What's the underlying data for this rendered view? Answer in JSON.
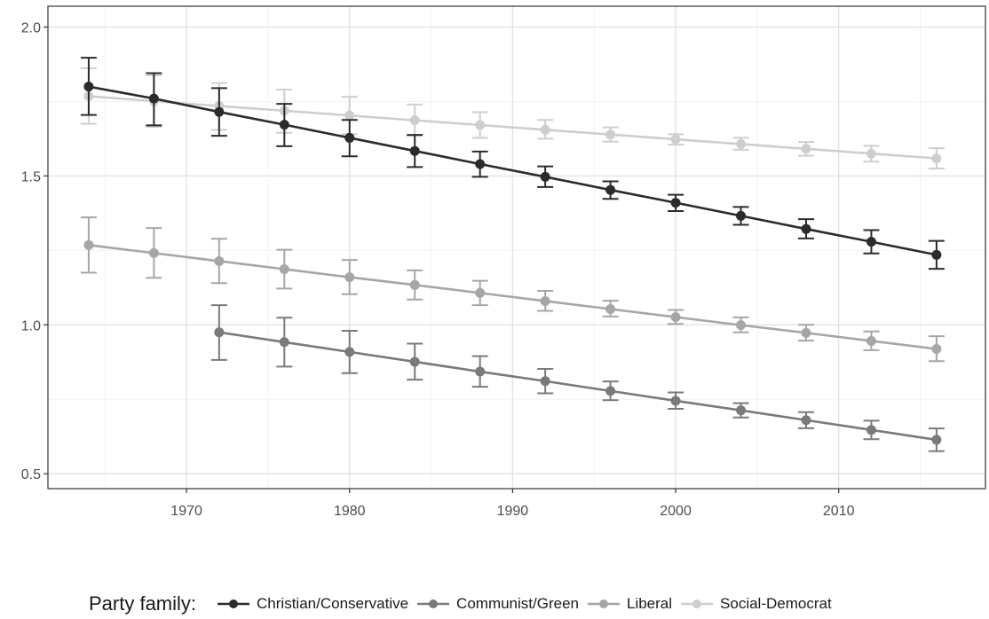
{
  "chart_data": {
    "type": "line",
    "title": "",
    "xlabel": "",
    "ylabel": "",
    "xlim": [
      1961.5,
      2019
    ],
    "ylim": [
      0.45,
      2.07
    ],
    "grid": true,
    "x_ticks": [
      1970,
      1980,
      1990,
      2000,
      2010
    ],
    "y_ticks": [
      0.5,
      1.0,
      1.5,
      2.0
    ],
    "y_tick_labels": [
      "0.5",
      "1.0",
      "1.5",
      "2.0"
    ],
    "legend_position": "bottom",
    "legend_title": "Party family:",
    "error_bars": true,
    "series": [
      {
        "name": "Christian/Conservative",
        "color": "#2b2b2b",
        "x": [
          1964,
          1968,
          1972,
          1976,
          1980,
          1984,
          1988,
          1992,
          1996,
          2000,
          2004,
          2008,
          2012,
          2016
        ],
        "y": [
          1.8,
          1.76,
          1.715,
          1.672,
          1.628,
          1.584,
          1.54,
          1.497,
          1.453,
          1.41,
          1.366,
          1.322,
          1.279,
          1.235
        ],
        "lower": [
          1.705,
          1.67,
          1.635,
          1.6,
          1.566,
          1.53,
          1.497,
          1.463,
          1.423,
          1.382,
          1.336,
          1.29,
          1.24,
          1.188
        ],
        "upper": [
          1.897,
          1.845,
          1.795,
          1.742,
          1.688,
          1.638,
          1.582,
          1.532,
          1.482,
          1.437,
          1.396,
          1.355,
          1.318,
          1.282
        ]
      },
      {
        "name": "Communist/Green",
        "color": "#7a7a7a",
        "x": [
          1972,
          1976,
          1980,
          1984,
          1988,
          1992,
          1996,
          2000,
          2004,
          2008,
          2012,
          2016
        ],
        "y": [
          0.975,
          0.942,
          0.909,
          0.876,
          0.843,
          0.811,
          0.778,
          0.745,
          0.713,
          0.68,
          0.647,
          0.614
        ],
        "lower": [
          0.882,
          0.86,
          0.838,
          0.816,
          0.792,
          0.77,
          0.747,
          0.718,
          0.689,
          0.653,
          0.616,
          0.576
        ],
        "upper": [
          1.066,
          1.024,
          0.98,
          0.937,
          0.895,
          0.852,
          0.81,
          0.773,
          0.737,
          0.707,
          0.678,
          0.652
        ]
      },
      {
        "name": "Liberal",
        "color": "#a6a6a6",
        "x": [
          1964,
          1968,
          1972,
          1976,
          1980,
          1984,
          1988,
          1992,
          1996,
          2000,
          2004,
          2008,
          2012,
          2016
        ],
        "y": [
          1.268,
          1.241,
          1.214,
          1.187,
          1.16,
          1.134,
          1.107,
          1.08,
          1.053,
          1.026,
          0.999,
          0.973,
          0.946,
          0.919
        ],
        "lower": [
          1.175,
          1.158,
          1.14,
          1.122,
          1.103,
          1.085,
          1.066,
          1.047,
          1.028,
          1.003,
          0.975,
          0.947,
          0.915,
          0.878
        ],
        "upper": [
          1.361,
          1.325,
          1.289,
          1.252,
          1.218,
          1.183,
          1.148,
          1.114,
          1.081,
          1.05,
          1.025,
          1.0,
          0.978,
          0.962
        ]
      },
      {
        "name": "Social-Democrat",
        "color": "#cecece",
        "x": [
          1964,
          1968,
          1972,
          1976,
          1980,
          1984,
          1988,
          1992,
          1996,
          2000,
          2004,
          2008,
          2012,
          2016
        ],
        "y": [
          1.768,
          1.751,
          1.735,
          1.719,
          1.703,
          1.687,
          1.671,
          1.655,
          1.639,
          1.623,
          1.607,
          1.591,
          1.575,
          1.559
        ],
        "lower": [
          1.675,
          1.665,
          1.655,
          1.645,
          1.64,
          1.635,
          1.628,
          1.625,
          1.615,
          1.605,
          1.588,
          1.568,
          1.548,
          1.525
        ],
        "upper": [
          1.862,
          1.838,
          1.812,
          1.79,
          1.766,
          1.74,
          1.714,
          1.688,
          1.663,
          1.64,
          1.628,
          1.614,
          1.601,
          1.593
        ]
      }
    ]
  }
}
